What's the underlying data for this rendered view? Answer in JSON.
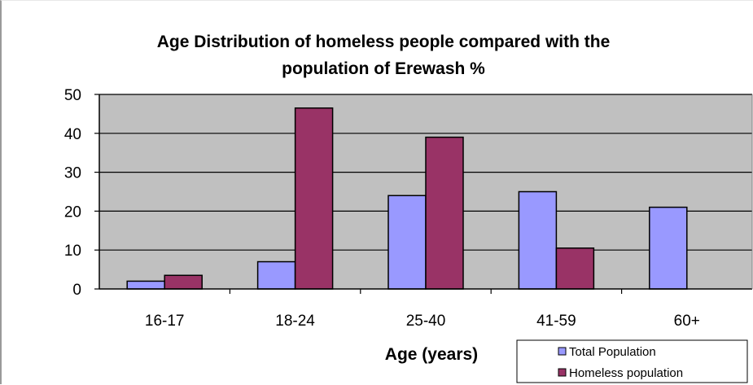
{
  "chart_data": {
    "type": "bar",
    "title_lines": [
      "Age Distribution of homeless people compared with the",
      "population of Erewash %"
    ],
    "xlabel": "Age (years)",
    "ylabel": "",
    "categories": [
      "16-17",
      "18-24",
      "25-40",
      "41-59",
      "60+"
    ],
    "series": [
      {
        "name": "Total Population",
        "values": [
          2,
          7,
          24,
          25,
          21
        ],
        "color": "#9999ff"
      },
      {
        "name": "Homeless population",
        "values": [
          3.5,
          46.5,
          39,
          10.5,
          0
        ],
        "color": "#993366"
      }
    ],
    "ylim": [
      0,
      50
    ],
    "yticks": [
      0,
      10,
      20,
      30,
      40,
      50
    ],
    "grid": true,
    "plot_background": "#c0c0c0",
    "legend_position": "bottom-right"
  }
}
